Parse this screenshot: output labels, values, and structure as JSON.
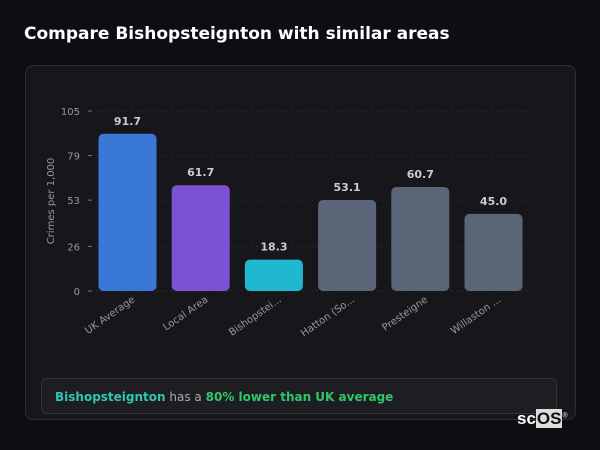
{
  "title": "Compare Bishopsteignton with similar areas",
  "chart_data": {
    "type": "bar",
    "categories": [
      "UK Average",
      "Local Area",
      "Bishopstei...",
      "Hatton (So...",
      "Presteigne",
      "Willaston ..."
    ],
    "values": [
      91.7,
      61.7,
      18.3,
      53.1,
      60.7,
      45.0
    ],
    "value_labels": [
      "91.7",
      "61.7",
      "18.3",
      "53.1",
      "60.7",
      "45.0"
    ],
    "colors": [
      "#3a78d8",
      "#7b52d4",
      "#1fb8d0",
      "#5a6678",
      "#5a6678",
      "#5a6678"
    ],
    "ylabel": "Crimes per 1,000",
    "yticks": [
      0,
      26,
      53,
      79,
      105
    ],
    "ylim": [
      0,
      105
    ],
    "grid": true
  },
  "summary": {
    "place": "Bishopsteignton",
    "middle": "has a",
    "highlight": "80% lower than UK average"
  },
  "watermark": "scOS"
}
